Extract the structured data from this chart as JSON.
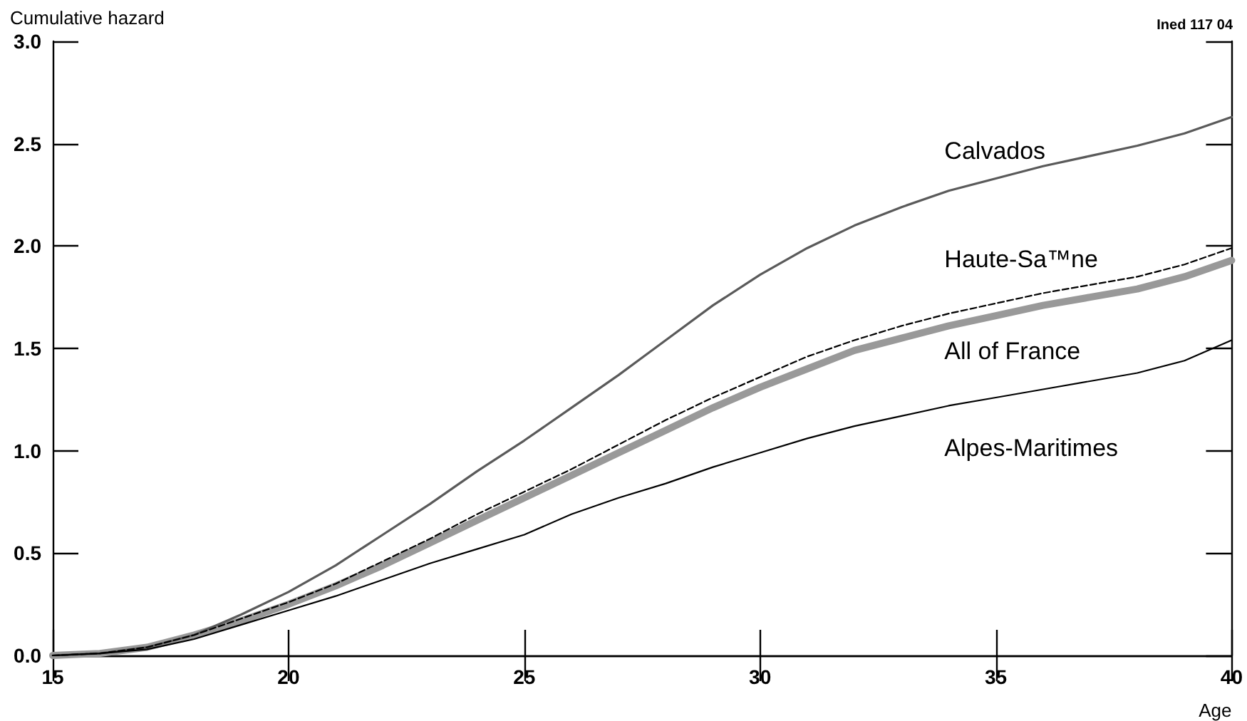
{
  "chart_data": {
    "type": "line",
    "xlabel": "Age",
    "ylabel": "Cumulative hazard",
    "annotations": [
      "Ined 117 04"
    ],
    "x": [
      15,
      16,
      17,
      18,
      19,
      20,
      21,
      22,
      23,
      24,
      25,
      26,
      27,
      28,
      29,
      30,
      31,
      32,
      33,
      34,
      35,
      36,
      37,
      38,
      39,
      40
    ],
    "series": [
      {
        "name": "Calvados",
        "color": "#5a5a5a",
        "line_style": "solid",
        "values": [
          0,
          0.01,
          0.04,
          0.1,
          0.2,
          0.31,
          0.44,
          0.59,
          0.74,
          0.9,
          1.05,
          1.21,
          1.37,
          1.54,
          1.71,
          1.86,
          1.99,
          2.1,
          2.19,
          2.27,
          2.33,
          2.39,
          2.44,
          2.49,
          2.55,
          2.63
        ]
      },
      {
        "name": "Haute-Sa™ne",
        "color": "#000000",
        "line_style": "dashed",
        "values": [
          0,
          0.01,
          0.04,
          0.1,
          0.18,
          0.26,
          0.35,
          0.46,
          0.57,
          0.69,
          0.8,
          0.91,
          1.03,
          1.15,
          1.26,
          1.36,
          1.46,
          1.54,
          1.61,
          1.67,
          1.72,
          1.77,
          1.81,
          1.85,
          1.91,
          1.99
        ]
      },
      {
        "name": "All of France",
        "color": "#999999",
        "line_style": "solid",
        "values": [
          0,
          0.01,
          0.04,
          0.1,
          0.17,
          0.25,
          0.34,
          0.44,
          0.55,
          0.66,
          0.77,
          0.88,
          0.99,
          1.1,
          1.21,
          1.31,
          1.4,
          1.49,
          1.55,
          1.61,
          1.66,
          1.71,
          1.75,
          1.79,
          1.85,
          1.93
        ]
      },
      {
        "name": "Alpes-Maritimes",
        "color": "#000000",
        "line_style": "solid",
        "values": [
          0,
          0.01,
          0.03,
          0.08,
          0.15,
          0.22,
          0.29,
          0.37,
          0.45,
          0.52,
          0.59,
          0.69,
          0.77,
          0.84,
          0.92,
          0.99,
          1.06,
          1.12,
          1.17,
          1.22,
          1.26,
          1.3,
          1.34,
          1.38,
          1.44,
          1.54
        ]
      }
    ],
    "xlim": [
      15,
      40
    ],
    "xticks": [
      15,
      20,
      25,
      30,
      35,
      40
    ],
    "ylim": [
      0,
      3
    ],
    "yticks": [
      {
        "value": 0,
        "label": "0.0"
      },
      {
        "value": 0.5,
        "label": "0.5"
      },
      {
        "value": 1,
        "label": "1.0"
      },
      {
        "value": 1.5,
        "label": "1.5"
      },
      {
        "value": 2,
        "label": "2.0"
      },
      {
        "value": 2.5,
        "label": "2.5"
      },
      {
        "value": 3,
        "label": "3.0"
      }
    ],
    "grid": false,
    "legend": false,
    "marker": "none"
  }
}
